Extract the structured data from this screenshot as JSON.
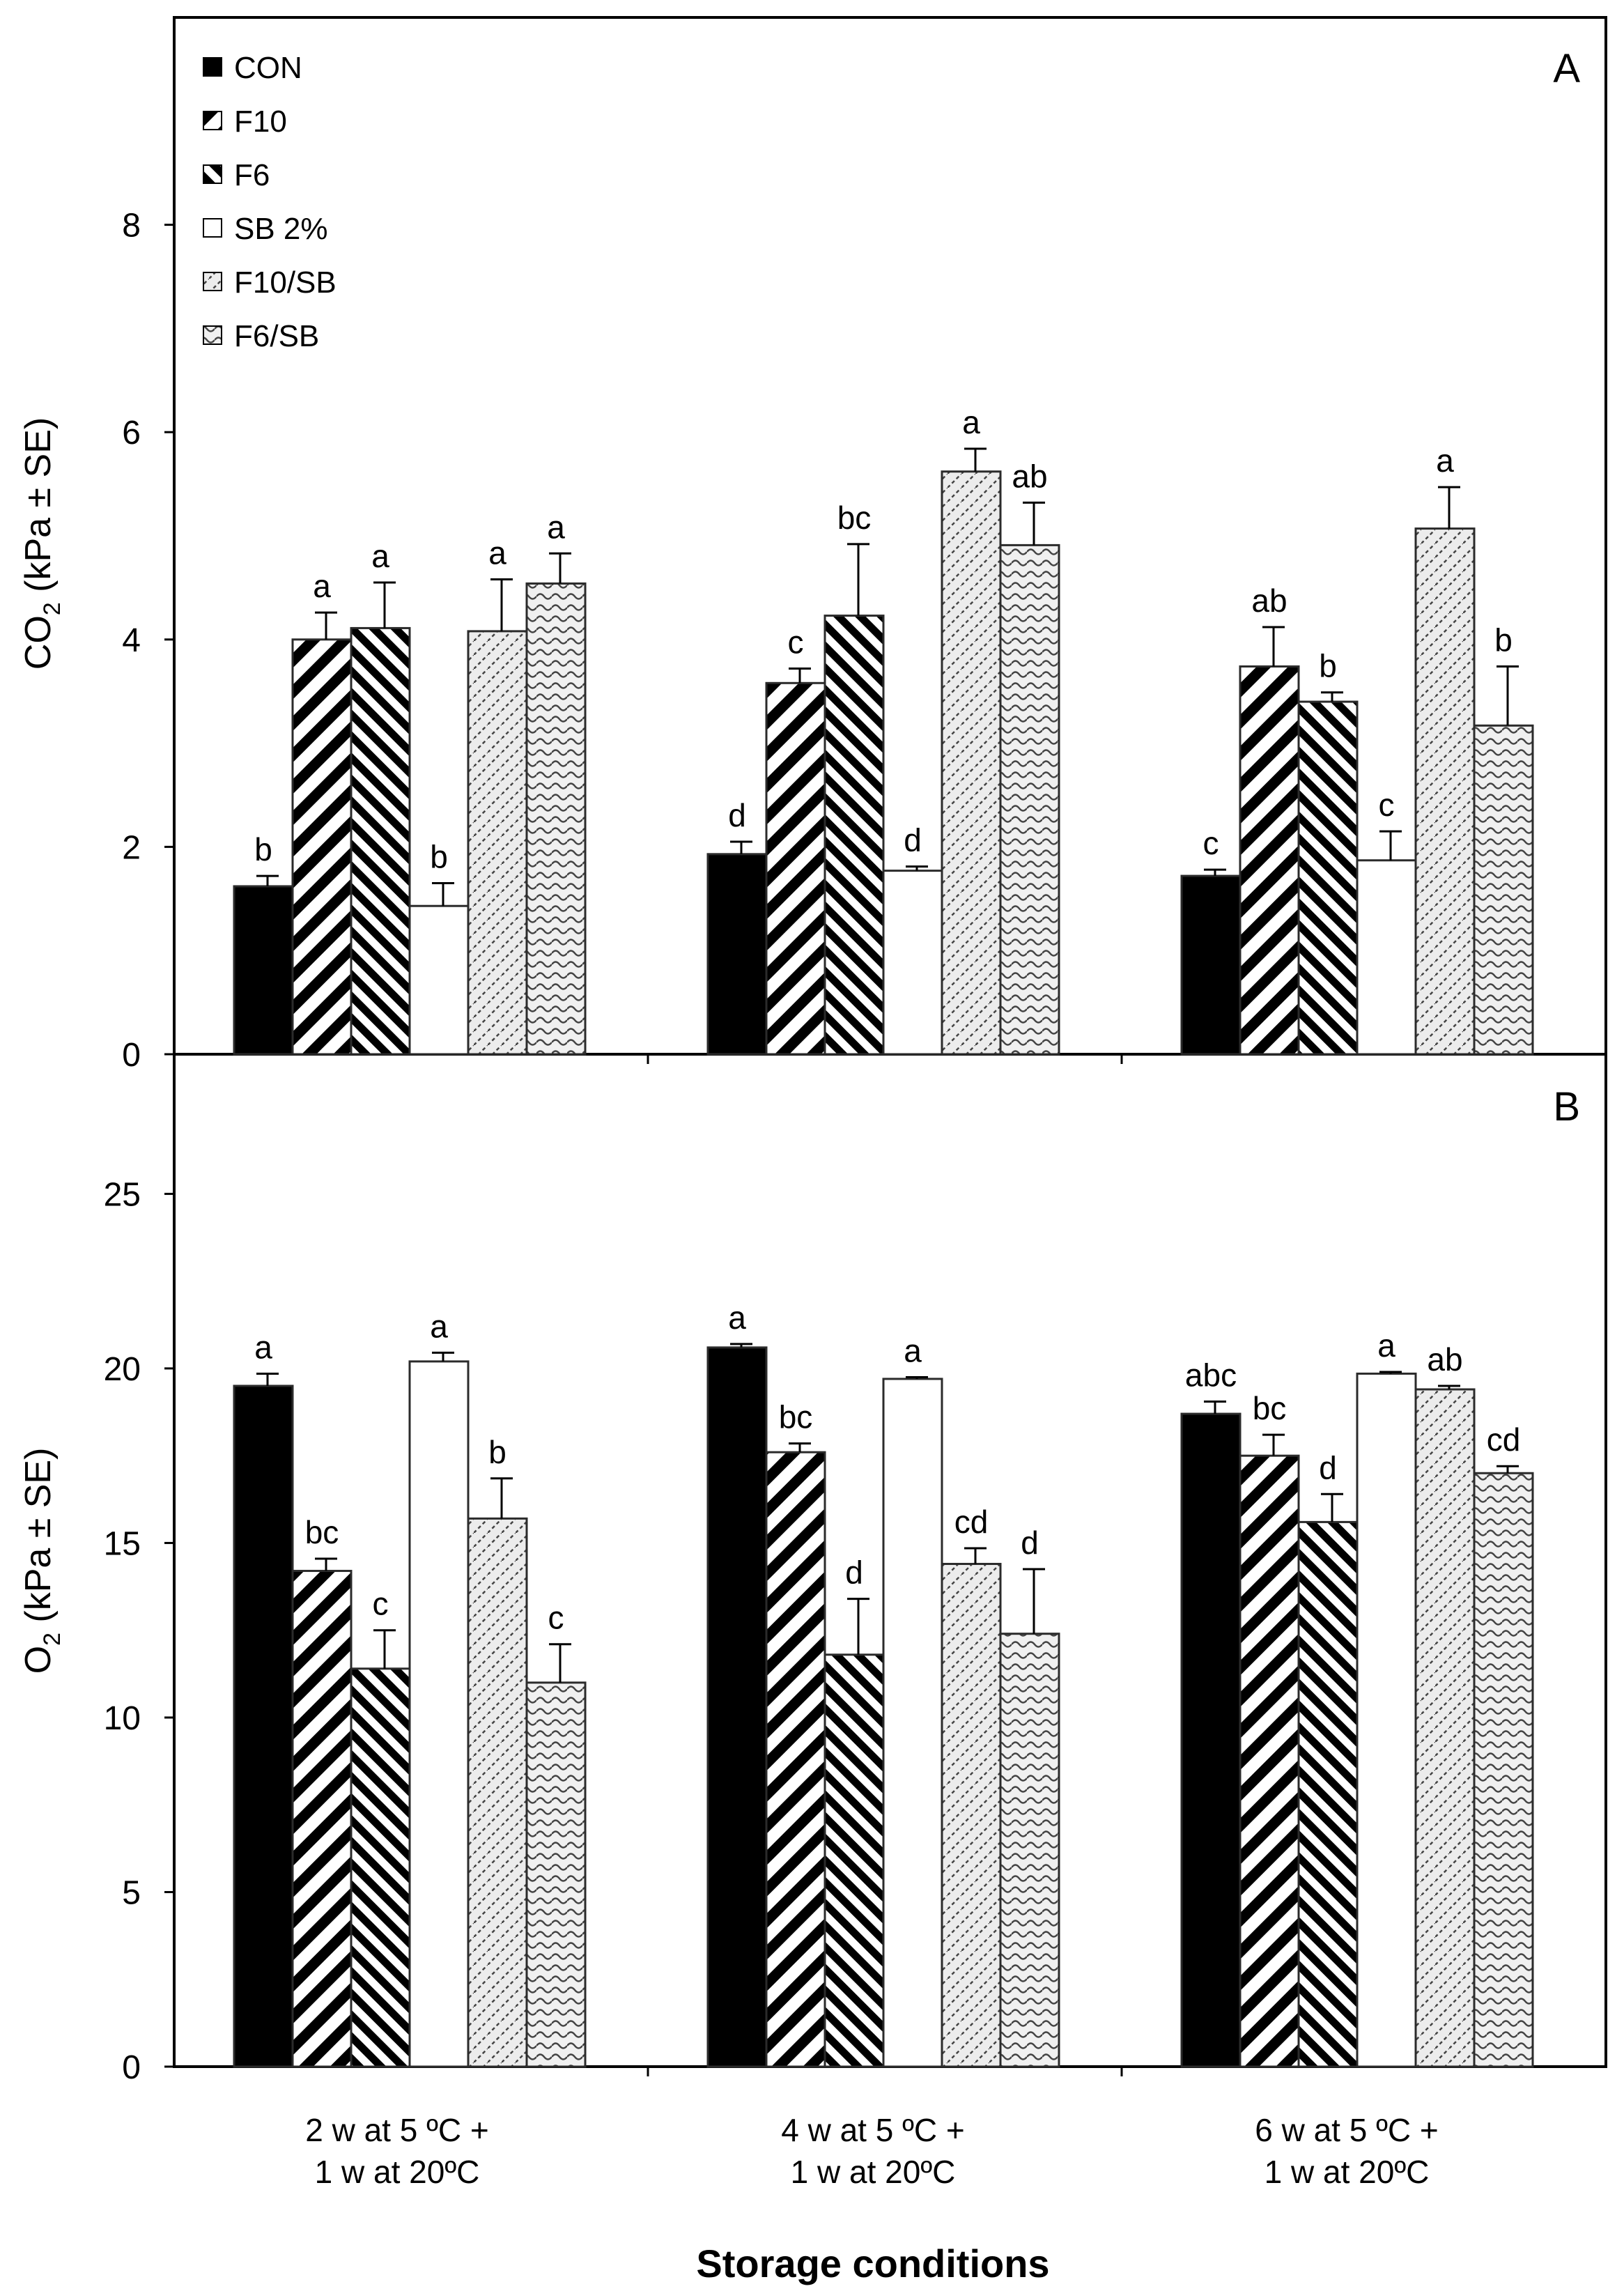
{
  "chart_data": [
    {
      "type": "bar",
      "panel": "A",
      "ylabel": "CO2 (kPa ± SE)",
      "ylabel_main": "CO",
      "ylabel_sub": "2",
      "ylabel_rest": " (kPa ± SE)",
      "ylim": [
        0,
        10
      ],
      "yticks": [
        0,
        2,
        4,
        6,
        8
      ],
      "ytick_labels": [
        "0",
        "2",
        "4",
        "6",
        "8"
      ],
      "categories": [
        "2 w at 5 ºC + 1 w at 20ºC",
        "4 w at 5 ºC + 1 w at 20ºC",
        "6 w at 5 ºC + 1 w at 20ºC"
      ],
      "series": [
        {
          "name": "CON",
          "values": [
            1.62,
            1.93,
            1.72
          ],
          "errors": [
            0.1,
            0.12,
            0.06
          ],
          "sig": [
            "b",
            "d",
            "c"
          ]
        },
        {
          "name": "F10",
          "values": [
            4.0,
            3.58,
            3.74
          ],
          "errors": [
            0.26,
            0.14,
            0.38
          ],
          "sig": [
            "a",
            "c",
            "ab"
          ]
        },
        {
          "name": "F6",
          "values": [
            4.11,
            4.23,
            3.4
          ],
          "errors": [
            0.44,
            0.69,
            0.09
          ],
          "sig": [
            "a",
            "bc",
            "b"
          ]
        },
        {
          "name": "SB 2%",
          "values": [
            1.43,
            1.77,
            1.87
          ],
          "errors": [
            0.22,
            0.04,
            0.28
          ],
          "sig": [
            "b",
            "d",
            "c"
          ]
        },
        {
          "name": "F10/SB",
          "values": [
            4.08,
            5.62,
            5.07
          ],
          "errors": [
            0.5,
            0.22,
            0.4
          ],
          "sig": [
            "a",
            "a",
            "a"
          ]
        },
        {
          "name": "F6/SB",
          "values": [
            4.54,
            4.91,
            3.17
          ],
          "errors": [
            0.29,
            0.41,
            0.57
          ],
          "sig": [
            "a",
            "ab",
            "b"
          ]
        }
      ]
    },
    {
      "type": "bar",
      "panel": "B",
      "ylabel": "O2 (kPa ± SE)",
      "ylabel_main": "O",
      "ylabel_sub": "2",
      "ylabel_rest": " (kPa ± SE)",
      "ylim": [
        0,
        29
      ],
      "yticks": [
        0,
        5,
        10,
        15,
        20,
        25
      ],
      "ytick_labels": [
        "0",
        "5",
        "10",
        "15",
        "20",
        "25"
      ],
      "categories": [
        "2 w at 5 ºC + 1 w at 20ºC",
        "4 w at 5 ºC + 1 w at 20ºC",
        "6 w at 5 ºC + 1 w at 20ºC"
      ],
      "series": [
        {
          "name": "CON",
          "values": [
            19.5,
            20.6,
            18.7
          ],
          "errors": [
            0.35,
            0.1,
            0.35
          ],
          "sig": [
            "a",
            "a",
            "abc"
          ]
        },
        {
          "name": "F10",
          "values": [
            14.2,
            17.6,
            17.5
          ],
          "errors": [
            0.35,
            0.25,
            0.6
          ],
          "sig": [
            "bc",
            "bc",
            "bc"
          ]
        },
        {
          "name": "F6",
          "values": [
            11.4,
            11.8,
            15.6
          ],
          "errors": [
            1.1,
            1.6,
            0.8
          ],
          "sig": [
            "c",
            "d",
            "d"
          ]
        },
        {
          "name": "SB 2%",
          "values": [
            20.2,
            19.7,
            19.85
          ],
          "errors": [
            0.25,
            0.05,
            0.05
          ],
          "sig": [
            "a",
            "a",
            "a"
          ]
        },
        {
          "name": "F10/SB",
          "values": [
            15.7,
            14.4,
            19.4
          ],
          "errors": [
            1.15,
            0.45,
            0.1
          ],
          "sig": [
            "b",
            "cd",
            "ab"
          ]
        },
        {
          "name": "F6/SB",
          "values": [
            11.0,
            12.4,
            17.0
          ],
          "errors": [
            1.1,
            1.85,
            0.2
          ],
          "sig": [
            "c",
            "d",
            "cd"
          ]
        }
      ]
    }
  ],
  "legend": [
    "CON",
    "F10",
    "F6",
    "SB 2%",
    "F10/SB",
    "F6/SB"
  ],
  "category_lines": [
    [
      "2 w at 5 ºC +",
      "1 w at 20ºC"
    ],
    [
      "4 w at 5 ºC +",
      "1 w at 20ºC"
    ],
    [
      "6 w at 5 ºC +",
      "1 w at 20ºC"
    ]
  ],
  "xlabel": "Storage conditions",
  "colors": {
    "axis": "#000000",
    "background": "#ffffff",
    "bar_outline": "#2b2b2b"
  }
}
